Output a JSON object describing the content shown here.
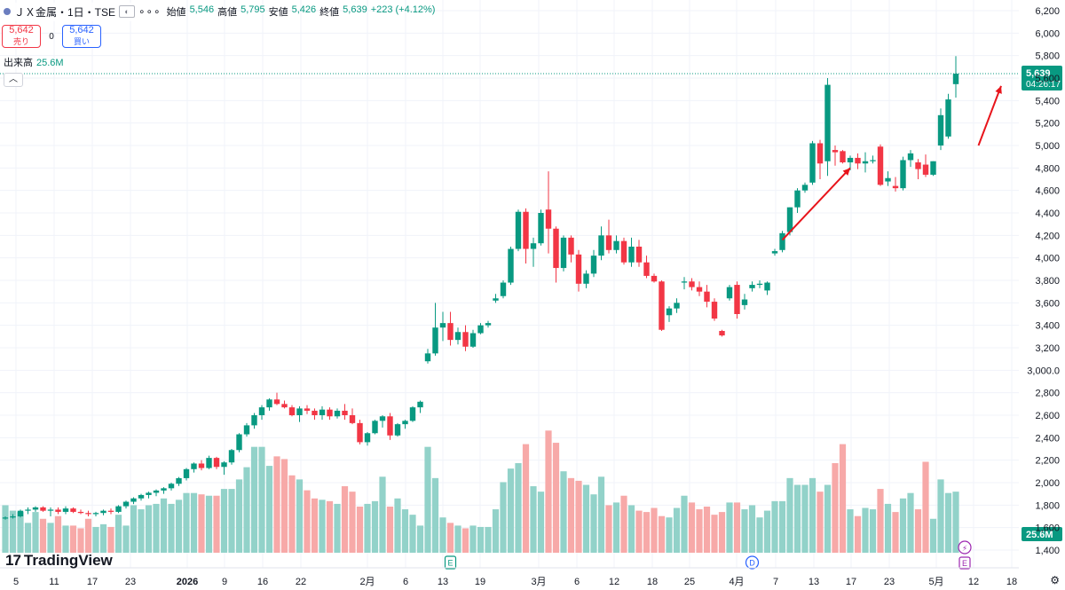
{
  "header": {
    "symbol": "ＪＸ金属・1日・TSE",
    "more": "∘∘∘",
    "open_label": "始値",
    "open": "5,546",
    "high_label": "高値",
    "high": "5,795",
    "low_label": "安値",
    "low": "5,426",
    "close_label": "終値",
    "close": "5,639",
    "change": "+223 (+4.12%)"
  },
  "trade": {
    "sell_price": "5,642",
    "sell_label": "売り",
    "spread": "0",
    "buy_price": "5,642",
    "buy_label": "買い"
  },
  "volume_label": {
    "name": "出来高",
    "value": "25.6M"
  },
  "collapse_icon": "chevron-up-icon",
  "logo": "TradingView",
  "colors": {
    "up": "#089981",
    "down": "#f23645",
    "up_vol": "#92d2c9",
    "down_vol": "#f7a9a8",
    "arrow": "#e8141b"
  },
  "chart_data": {
    "type": "candlestick",
    "ylim": [
      1300,
      6250
    ],
    "y_ticks": [
      "1,400",
      "1,600",
      "1,800",
      "2,000",
      "2,200",
      "2,400",
      "2,600",
      "2,800",
      "3,000.0",
      "3,200",
      "3,400",
      "3,600",
      "3,800",
      "4,000",
      "4,200",
      "4,400",
      "4,600",
      "4,800",
      "5,000",
      "5,200",
      "5,400",
      "5,600",
      "5,800",
      "6,000",
      "6,200"
    ],
    "x_ticks": [
      "5",
      "11",
      "17",
      "23",
      "2026",
      "9",
      "16",
      "22",
      "2月",
      "6",
      "13",
      "19",
      "3月",
      "6",
      "12",
      "18",
      "25",
      "4月",
      "7",
      "13",
      "17",
      "23",
      "5月",
      "12",
      "18"
    ],
    "price_line": 5639,
    "price_label": "5,639",
    "countdown": "04:26:17",
    "volume_axis_label": "25.6M",
    "candles": [
      [
        1680,
        1700,
        1670,
        1690,
        0.35
      ],
      [
        1690,
        1720,
        1680,
        1700,
        0.31
      ],
      [
        1700,
        1760,
        1690,
        1750,
        0.3
      ],
      [
        1750,
        1780,
        1720,
        1760,
        0.22
      ],
      [
        1760,
        1790,
        1740,
        1780,
        0.3
      ],
      [
        1780,
        1790,
        1740,
        1750,
        0.25
      ],
      [
        1750,
        1780,
        1700,
        1760,
        0.22
      ],
      [
        1760,
        1780,
        1720,
        1740,
        0.27
      ],
      [
        1740,
        1790,
        1720,
        1770,
        0.2
      ],
      [
        1770,
        1780,
        1730,
        1740,
        0.2
      ],
      [
        1740,
        1760,
        1720,
        1730,
        0.18
      ],
      [
        1730,
        1750,
        1700,
        1720,
        0.25
      ],
      [
        1720,
        1740,
        1700,
        1730,
        0.19
      ],
      [
        1730,
        1760,
        1710,
        1750,
        0.21
      ],
      [
        1750,
        1770,
        1720,
        1740,
        0.19
      ],
      [
        1740,
        1800,
        1730,
        1790,
        0.28
      ],
      [
        1790,
        1840,
        1770,
        1830,
        0.2
      ],
      [
        1830,
        1870,
        1810,
        1860,
        0.35
      ],
      [
        1860,
        1900,
        1840,
        1890,
        0.32
      ],
      [
        1890,
        1920,
        1860,
        1910,
        0.35
      ],
      [
        1910,
        1940,
        1880,
        1930,
        0.36
      ],
      [
        1930,
        1960,
        1900,
        1950,
        0.4
      ],
      [
        1950,
        2000,
        1930,
        1990,
        0.36
      ],
      [
        1990,
        2050,
        1970,
        2040,
        0.39
      ],
      [
        2040,
        2130,
        2020,
        2120,
        0.44
      ],
      [
        2120,
        2180,
        2090,
        2170,
        0.44
      ],
      [
        2170,
        2200,
        2110,
        2130,
        0.43
      ],
      [
        2130,
        2240,
        2120,
        2220,
        0.42
      ],
      [
        2220,
        2230,
        2120,
        2140,
        0.42
      ],
      [
        2140,
        2190,
        2070,
        2180,
        0.47
      ],
      [
        2180,
        2300,
        2160,
        2290,
        0.47
      ],
      [
        2290,
        2440,
        2270,
        2430,
        0.54
      ],
      [
        2430,
        2530,
        2410,
        2510,
        0.63
      ],
      [
        2510,
        2620,
        2480,
        2600,
        0.78
      ],
      [
        2600,
        2690,
        2560,
        2670,
        0.78
      ],
      [
        2670,
        2750,
        2640,
        2740,
        0.64
      ],
      [
        2740,
        2800,
        2690,
        2700,
        0.71
      ],
      [
        2700,
        2730,
        2660,
        2670,
        0.69
      ],
      [
        2670,
        2690,
        2590,
        2600,
        0.57
      ],
      [
        2600,
        2680,
        2540,
        2660,
        0.54
      ],
      [
        2660,
        2690,
        2610,
        2640,
        0.46
      ],
      [
        2640,
        2660,
        2560,
        2600,
        0.4
      ],
      [
        2600,
        2680,
        2560,
        2650,
        0.39
      ],
      [
        2650,
        2670,
        2560,
        2590,
        0.38
      ],
      [
        2590,
        2660,
        2570,
        2640,
        0.36
      ],
      [
        2640,
        2700,
        2560,
        2600,
        0.49
      ],
      [
        2600,
        2660,
        2520,
        2530,
        0.45
      ],
      [
        2530,
        2560,
        2340,
        2360,
        0.34
      ],
      [
        2360,
        2450,
        2330,
        2440,
        0.36
      ],
      [
        2440,
        2560,
        2430,
        2550,
        0.38
      ],
      [
        2550,
        2600,
        2490,
        2590,
        0.56
      ],
      [
        2590,
        2620,
        2380,
        2420,
        0.34
      ],
      [
        2420,
        2530,
        2410,
        2520,
        0.4
      ],
      [
        2520,
        2560,
        2480,
        2550,
        0.32
      ],
      [
        2550,
        2680,
        2540,
        2670,
        0.28
      ],
      [
        2670,
        2730,
        2620,
        2720,
        0.2
      ],
      [
        3080,
        3190,
        3060,
        3150,
        0.78
      ],
      [
        3150,
        3600,
        3130,
        3380,
        0.55
      ],
      [
        3380,
        3520,
        3260,
        3420,
        0.26
      ],
      [
        3420,
        3520,
        3220,
        3270,
        0.22
      ],
      [
        3270,
        3380,
        3230,
        3340,
        0.2
      ],
      [
        3340,
        3400,
        3170,
        3210,
        0.18
      ],
      [
        3210,
        3360,
        3200,
        3330,
        0.2
      ],
      [
        3330,
        3420,
        3320,
        3400,
        0.19
      ],
      [
        3400,
        3440,
        3380,
        3420,
        0.19
      ],
      [
        3620,
        3680,
        3600,
        3640,
        0.32
      ],
      [
        3660,
        3800,
        3640,
        3780,
        0.52
      ],
      [
        3780,
        4100,
        3760,
        4080,
        0.62
      ],
      [
        4080,
        4430,
        4060,
        4410,
        0.66
      ],
      [
        4410,
        4440,
        3950,
        4080,
        0.8
      ],
      [
        4080,
        4180,
        3920,
        4130,
        0.49
      ],
      [
        4130,
        4430,
        4110,
        4400,
        0.45
      ],
      [
        4430,
        4770,
        4040,
        4260,
        0.9
      ],
      [
        4260,
        4280,
        3780,
        3910,
        0.81
      ],
      [
        3910,
        4200,
        3880,
        4180,
        0.6
      ],
      [
        4180,
        4200,
        3960,
        4030,
        0.55
      ],
      [
        4030,
        4070,
        3700,
        3770,
        0.53
      ],
      [
        3770,
        3890,
        3730,
        3860,
        0.5
      ],
      [
        3860,
        4070,
        3830,
        4020,
        0.43
      ],
      [
        4020,
        4280,
        3980,
        4200,
        0.56
      ],
      [
        4200,
        4340,
        4040,
        4070,
        0.35
      ],
      [
        4070,
        4200,
        4040,
        4150,
        0.37
      ],
      [
        4150,
        4180,
        3940,
        3960,
        0.42
      ],
      [
        3960,
        4180,
        3920,
        4100,
        0.35
      ],
      [
        4100,
        4160,
        3920,
        3960,
        0.31
      ],
      [
        3960,
        4020,
        3820,
        3840,
        0.3
      ],
      [
        3840,
        3860,
        3780,
        3790,
        0.33
      ],
      [
        3790,
        3800,
        3350,
        3360,
        0.27
      ],
      [
        3490,
        3570,
        3430,
        3550,
        0.26
      ],
      [
        3550,
        3640,
        3510,
        3600,
        0.33
      ],
      [
        3780,
        3830,
        3720,
        3790,
        0.42
      ],
      [
        3790,
        3820,
        3710,
        3740,
        0.37
      ],
      [
        3740,
        3790,
        3660,
        3700,
        0.32
      ],
      [
        3700,
        3760,
        3560,
        3610,
        0.34
      ],
      [
        3610,
        3640,
        3440,
        3460,
        0.28
      ],
      [
        3350,
        3360,
        3300,
        3310,
        0.3
      ],
      [
        3640,
        3760,
        3620,
        3740,
        0.37
      ],
      [
        3760,
        3790,
        3460,
        3500,
        0.37
      ],
      [
        3580,
        3680,
        3540,
        3630,
        0.32
      ],
      [
        3730,
        3790,
        3700,
        3760,
        0.35
      ],
      [
        3760,
        3800,
        3730,
        3770,
        0.26
      ],
      [
        3710,
        3790,
        3670,
        3780,
        0.31
      ],
      [
        4040,
        4080,
        4020,
        4060,
        0.38
      ],
      [
        4070,
        4240,
        4050,
        4220,
        0.38
      ],
      [
        4230,
        4450,
        4200,
        4450,
        0.55
      ],
      [
        4450,
        4620,
        4400,
        4600,
        0.5
      ],
      [
        4600,
        4670,
        4580,
        4650,
        0.5
      ],
      [
        4670,
        5040,
        4650,
        5020,
        0.55
      ],
      [
        5020,
        5050,
        4700,
        4840,
        0.45
      ],
      [
        4860,
        5600,
        4730,
        5540,
        0.5
      ],
      [
        4960,
        5000,
        4820,
        4940,
        0.66
      ],
      [
        4950,
        4960,
        4840,
        4850,
        0.8
      ],
      [
        4850,
        4910,
        4780,
        4890,
        0.32
      ],
      [
        4890,
        4930,
        4790,
        4840,
        0.27
      ],
      [
        4840,
        4940,
        4760,
        4860,
        0.33
      ],
      [
        4860,
        4910,
        4840,
        4870,
        0.32
      ],
      [
        4990,
        5010,
        4640,
        4650,
        0.47
      ],
      [
        4680,
        4770,
        4640,
        4710,
        0.36
      ],
      [
        4640,
        4720,
        4590,
        4620,
        0.3
      ],
      [
        4620,
        4900,
        4600,
        4870,
        0.4
      ],
      [
        4870,
        4960,
        4810,
        4930,
        0.44
      ],
      [
        4850,
        4880,
        4700,
        4790,
        0.32
      ],
      [
        4830,
        4920,
        4720,
        4740,
        0.67
      ],
      [
        4740,
        4860,
        4730,
        4860,
        0.25
      ],
      [
        5000,
        5330,
        4960,
        5270,
        0.54
      ],
      [
        5080,
        5460,
        5060,
        5410,
        0.44
      ],
      [
        5546,
        5795,
        5426,
        5639,
        0.45
      ]
    ],
    "annotations": [
      {
        "type": "arrow",
        "from": [
          103,
          4160
        ],
        "to": [
          112,
          4800
        ]
      },
      {
        "type": "arrow",
        "from": [
          129,
          5000
        ],
        "to": [
          132,
          5530
        ]
      },
      {
        "type": "text",
        "text": "?",
        "at": [
          145,
          5220
        ]
      }
    ],
    "markers": [
      {
        "label": "E",
        "index": 59
      },
      {
        "label": "D",
        "index": 99
      }
    ],
    "right_markers": [
      "⚡",
      "E"
    ]
  }
}
